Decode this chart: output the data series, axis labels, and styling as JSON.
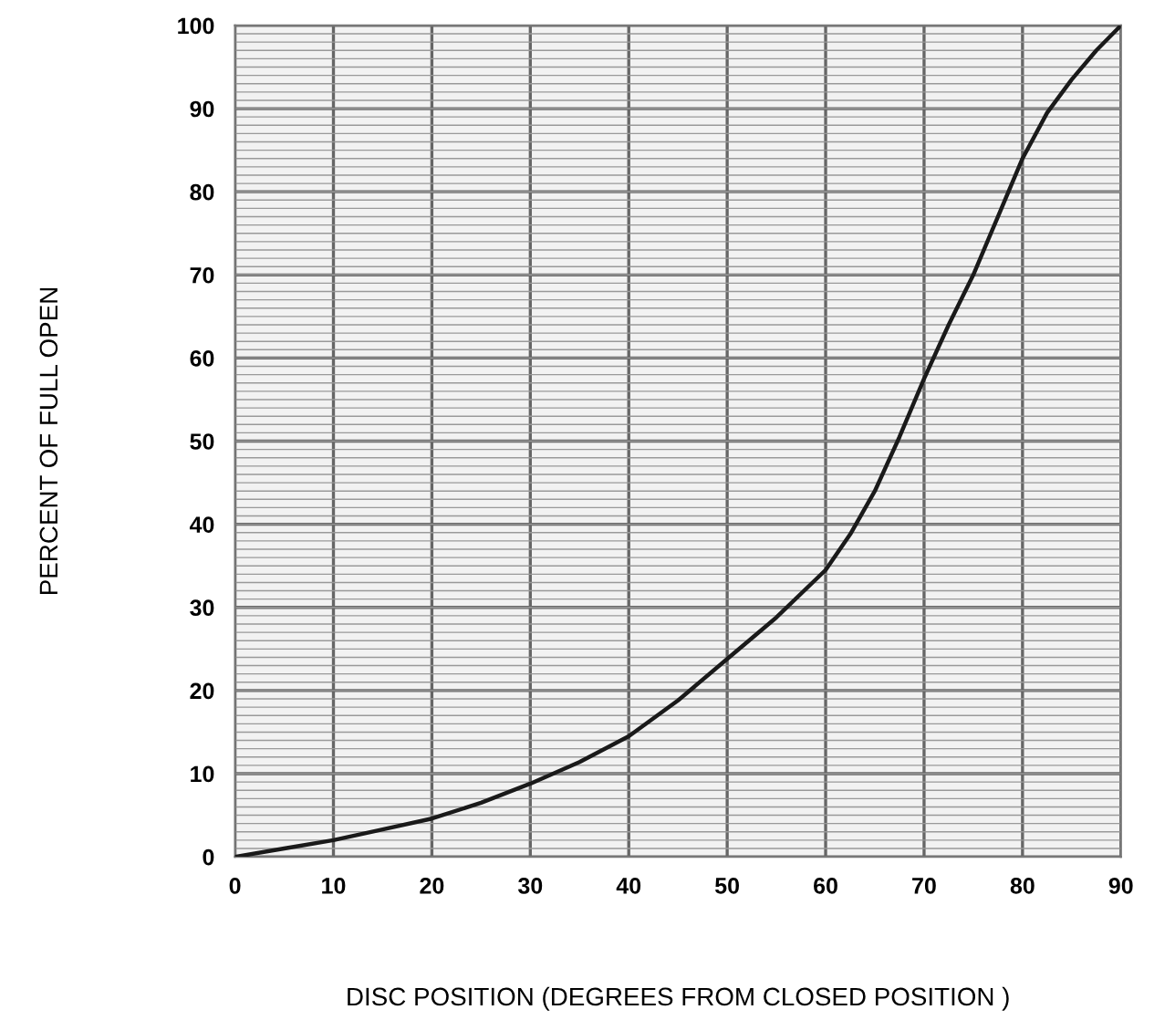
{
  "chart_data": {
    "type": "line",
    "xlabel": "DISC POSITION (DEGREES FROM CLOSED POSITION )",
    "ylabel": "PERCENT OF FULL OPEN",
    "x": [
      0,
      5,
      10,
      15,
      20,
      25,
      30,
      35,
      40,
      45,
      50,
      55,
      60,
      62.5,
      65,
      67.5,
      70,
      72.5,
      75,
      77.5,
      80,
      82.5,
      85,
      87.5,
      90
    ],
    "series": [
      {
        "color": "#1a1a1a",
        "values": [
          0,
          1,
          2,
          3.3,
          4.6,
          6.5,
          8.8,
          11.4,
          14.5,
          18.8,
          23.8,
          28.8,
          34.5,
          38.8,
          44,
          50.5,
          57.5,
          64,
          70,
          77,
          84,
          89.5,
          93.5,
          97,
          100
        ]
      }
    ],
    "xlim": [
      0,
      90
    ],
    "ylim": [
      0,
      100
    ],
    "xticks": [
      0,
      10,
      20,
      30,
      40,
      50,
      60,
      70,
      80,
      90
    ],
    "yticks": [
      0,
      10,
      20,
      30,
      40,
      50,
      60,
      70,
      80,
      90,
      100
    ],
    "grid": true,
    "legend": false,
    "marker": "none",
    "line_style": "solid"
  }
}
